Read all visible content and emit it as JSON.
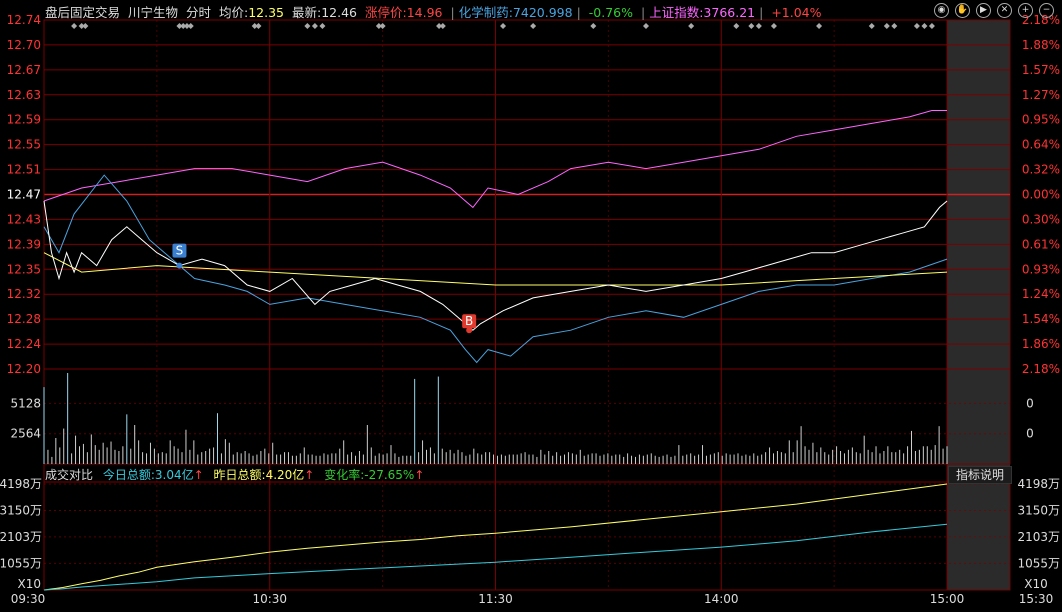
{
  "header": {
    "mode": "盘后固定交易",
    "stock": "川宁生物",
    "period": "分时",
    "avg_label": "均价:",
    "avg_value": "12.35",
    "last_label": "最新:",
    "last_value": "12.46",
    "limit_label": "涨停价:",
    "limit_value": "14.96",
    "sector_label": "化学制药:",
    "sector_value": "7420.998",
    "sector_pct": "-0.76%",
    "index_label": "上证指数:",
    "index_value": "3766.21",
    "index_pct": "+1.04%"
  },
  "toolbar": [
    "eye-icon",
    "hand-icon",
    "play-icon",
    "close-icon",
    "zoom-in-icon",
    "zoom-out-icon"
  ],
  "volume_header": {
    "title": "成交对比",
    "today_label": "今日总额:",
    "today_value": "3.04亿",
    "yest_label": "昨日总额:",
    "yest_value": "4.20亿",
    "change_label": "变化率:",
    "change_value": "-27.65%",
    "button": "指标说明"
  },
  "colors": {
    "price": "#ffffff",
    "avg": "#ffff66",
    "sector": "#4aa3df",
    "index": "#ff66ff",
    "vol": "#cfcfcf",
    "grid": "#7a0000",
    "up": "#ff3333",
    "down": "#33cc33",
    "cum_today": "#ffff66",
    "cum_yest": "#33ccdd"
  },
  "chart_data": {
    "type": "line",
    "price_axis": [
      "12.74",
      "12.70",
      "12.67",
      "12.63",
      "12.59",
      "12.55",
      "12.51",
      "12.47",
      "12.43",
      "12.39",
      "12.35",
      "12.32",
      "12.28",
      "12.24",
      "12.20"
    ],
    "pct_axis": [
      "2.18%",
      "1.88%",
      "1.57%",
      "1.27%",
      "0.95%",
      "0.64%",
      "0.32%",
      "0.00%",
      "0.30%",
      "0.61%",
      "0.93%",
      "1.24%",
      "1.54%",
      "1.86%",
      "2.18%"
    ],
    "ylim": [
      12.2,
      12.74
    ],
    "prev_close": 12.47,
    "x_ticks": [
      "09:30",
      "10:30",
      "11:30",
      "14:00",
      "15:00",
      "15:30"
    ],
    "price_series": [
      [
        0,
        12.46
      ],
      [
        2,
        12.38
      ],
      [
        4,
        12.34
      ],
      [
        6,
        12.38
      ],
      [
        8,
        12.35
      ],
      [
        10,
        12.38
      ],
      [
        14,
        12.36
      ],
      [
        18,
        12.4
      ],
      [
        22,
        12.42
      ],
      [
        26,
        12.4
      ],
      [
        30,
        12.38
      ],
      [
        36,
        12.36
      ],
      [
        42,
        12.37
      ],
      [
        48,
        12.36
      ],
      [
        54,
        12.33
      ],
      [
        60,
        12.32
      ],
      [
        66,
        12.34
      ],
      [
        72,
        12.3
      ],
      [
        76,
        12.32
      ],
      [
        82,
        12.33
      ],
      [
        88,
        12.34
      ],
      [
        94,
        12.33
      ],
      [
        100,
        12.32
      ],
      [
        106,
        12.3
      ],
      [
        110,
        12.28
      ],
      [
        114,
        12.26
      ],
      [
        116,
        12.27
      ],
      [
        122,
        12.29
      ],
      [
        130,
        12.31
      ],
      [
        140,
        12.32
      ],
      [
        150,
        12.33
      ],
      [
        160,
        12.32
      ],
      [
        170,
        12.33
      ],
      [
        180,
        12.34
      ],
      [
        186,
        12.35
      ],
      [
        192,
        12.36
      ],
      [
        198,
        12.37
      ],
      [
        204,
        12.38
      ],
      [
        210,
        12.38
      ],
      [
        216,
        12.39
      ],
      [
        222,
        12.4
      ],
      [
        228,
        12.41
      ],
      [
        234,
        12.42
      ],
      [
        238,
        12.45
      ],
      [
        240,
        12.46
      ]
    ],
    "avg_series": [
      [
        0,
        12.38
      ],
      [
        10,
        12.35
      ],
      [
        30,
        12.36
      ],
      [
        60,
        12.35
      ],
      [
        90,
        12.34
      ],
      [
        120,
        12.33
      ],
      [
        150,
        12.33
      ],
      [
        180,
        12.33
      ],
      [
        210,
        12.34
      ],
      [
        240,
        12.35
      ]
    ],
    "sector_series": [
      [
        0,
        12.42
      ],
      [
        4,
        12.38
      ],
      [
        8,
        12.44
      ],
      [
        16,
        12.5
      ],
      [
        22,
        12.46
      ],
      [
        28,
        12.4
      ],
      [
        34,
        12.37
      ],
      [
        40,
        12.34
      ],
      [
        48,
        12.33
      ],
      [
        54,
        12.32
      ],
      [
        60,
        12.3
      ],
      [
        70,
        12.31
      ],
      [
        80,
        12.3
      ],
      [
        90,
        12.29
      ],
      [
        100,
        12.28
      ],
      [
        108,
        12.26
      ],
      [
        112,
        12.23
      ],
      [
        115,
        12.21
      ],
      [
        118,
        12.23
      ],
      [
        124,
        12.22
      ],
      [
        130,
        12.25
      ],
      [
        140,
        12.26
      ],
      [
        150,
        12.28
      ],
      [
        160,
        12.29
      ],
      [
        170,
        12.28
      ],
      [
        180,
        12.3
      ],
      [
        190,
        12.32
      ],
      [
        200,
        12.33
      ],
      [
        210,
        12.33
      ],
      [
        220,
        12.34
      ],
      [
        230,
        12.35
      ],
      [
        240,
        12.37
      ]
    ],
    "index_series": [
      [
        0,
        12.46
      ],
      [
        10,
        12.48
      ],
      [
        20,
        12.49
      ],
      [
        30,
        12.5
      ],
      [
        40,
        12.51
      ],
      [
        50,
        12.51
      ],
      [
        60,
        12.5
      ],
      [
        70,
        12.49
      ],
      [
        80,
        12.51
      ],
      [
        90,
        12.52
      ],
      [
        100,
        12.5
      ],
      [
        108,
        12.48
      ],
      [
        112,
        12.46
      ],
      [
        114,
        12.45
      ],
      [
        118,
        12.48
      ],
      [
        126,
        12.47
      ],
      [
        134,
        12.49
      ],
      [
        140,
        12.51
      ],
      [
        150,
        12.52
      ],
      [
        160,
        12.51
      ],
      [
        170,
        12.52
      ],
      [
        180,
        12.53
      ],
      [
        190,
        12.54
      ],
      [
        200,
        12.56
      ],
      [
        210,
        12.57
      ],
      [
        220,
        12.58
      ],
      [
        230,
        12.59
      ],
      [
        236,
        12.6
      ],
      [
        240,
        12.6
      ]
    ],
    "markers": [
      {
        "label": "S",
        "t": 36,
        "p": 12.36,
        "color": "#3b7fd1"
      },
      {
        "label": "B",
        "t": 113,
        "p": 12.26,
        "color": "#e03a2e"
      }
    ],
    "volume_axis": [
      "5128",
      "2564",
      "0"
    ],
    "volume_right_axis": [
      "0",
      "0"
    ],
    "volume_max": 7700,
    "volume": [
      6500,
      1200,
      600,
      2200,
      1400,
      3000,
      7700,
      900,
      2400,
      1500,
      1700,
      1000,
      2500,
      1600,
      1200,
      1800,
      1400,
      1900,
      1200,
      1100,
      1500,
      4200,
      1300,
      3300,
      2000,
      1000,
      900,
      1800,
      1300,
      900,
      1000,
      900,
      2000,
      1500,
      1300,
      1000,
      2900,
      1200,
      2000,
      800,
      1000,
      1100,
      1300,
      1400,
      4300,
      900,
      2100,
      1800,
      800,
      1000,
      900,
      1100,
      900,
      700,
      800,
      1100,
      1300,
      900,
      1800,
      800,
      800,
      1000,
      1000,
      700,
      700,
      900,
      1400,
      800,
      800,
      700,
      700,
      900,
      800,
      900,
      900,
      1300,
      2000,
      800,
      1000,
      700,
      1100,
      800,
      3300,
      1400,
      700,
      900,
      800,
      900,
      1600,
      900,
      600,
      700,
      700,
      700,
      7200,
      1000,
      2000,
      1200,
      1400,
      900,
      7400,
      1300,
      1000,
      1200,
      900,
      1200,
      1000,
      700,
      800,
      1300,
      900,
      800,
      1000,
      1000,
      800,
      700,
      800,
      700,
      800,
      800,
      800,
      900,
      1000,
      800,
      800,
      600,
      1200,
      800,
      1100,
      700,
      1000,
      700,
      800,
      1000,
      900,
      800,
      1200,
      700,
      800,
      900,
      900,
      700,
      800,
      900,
      700,
      800,
      800,
      600,
      900,
      700,
      600,
      800,
      700,
      800,
      900,
      700,
      600,
      700,
      800,
      600,
      700,
      1600,
      700,
      800,
      900,
      700,
      800,
      1600,
      700,
      800,
      900,
      1000,
      700,
      900,
      800,
      800,
      900,
      700,
      800,
      700,
      900,
      700,
      800,
      1000,
      1400,
      900,
      1100,
      1000,
      900,
      2000,
      1000,
      2000,
      3200,
      1500,
      1200,
      1800,
      1000,
      1400,
      1000,
      800,
      1200,
      1500,
      1100,
      900,
      1200,
      1400,
      1000,
      900,
      2400,
      1200,
      1000,
      1500,
      900,
      1100,
      1500,
      1000,
      1000,
      1200,
      900,
      1500,
      2800,
      1100,
      1200,
      1500,
      1500,
      1200,
      1600,
      3200,
      1300,
      1500
    ],
    "cum_axis": [
      "4198万",
      "3150万",
      "2103万",
      "1055万",
      "X10"
    ],
    "cum_max": 4198,
    "cum_today": [
      [
        0,
        0
      ],
      [
        5,
        100
      ],
      [
        10,
        250
      ],
      [
        15,
        380
      ],
      [
        20,
        560
      ],
      [
        25,
        700
      ],
      [
        30,
        900
      ],
      [
        40,
        1120
      ],
      [
        50,
        1300
      ],
      [
        60,
        1500
      ],
      [
        70,
        1650
      ],
      [
        80,
        1780
      ],
      [
        90,
        1900
      ],
      [
        100,
        2000
      ],
      [
        110,
        2150
      ],
      [
        120,
        2250
      ],
      [
        140,
        2500
      ],
      [
        160,
        2800
      ],
      [
        180,
        3100
      ],
      [
        200,
        3400
      ],
      [
        220,
        3800
      ],
      [
        240,
        4198
      ]
    ],
    "cum_yest": [
      [
        0,
        0
      ],
      [
        5,
        50
      ],
      [
        10,
        120
      ],
      [
        20,
        220
      ],
      [
        30,
        330
      ],
      [
        40,
        480
      ],
      [
        60,
        650
      ],
      [
        80,
        800
      ],
      [
        100,
        950
      ],
      [
        120,
        1100
      ],
      [
        140,
        1300
      ],
      [
        160,
        1500
      ],
      [
        180,
        1700
      ],
      [
        200,
        1950
      ],
      [
        220,
        2300
      ],
      [
        240,
        2600
      ]
    ]
  }
}
